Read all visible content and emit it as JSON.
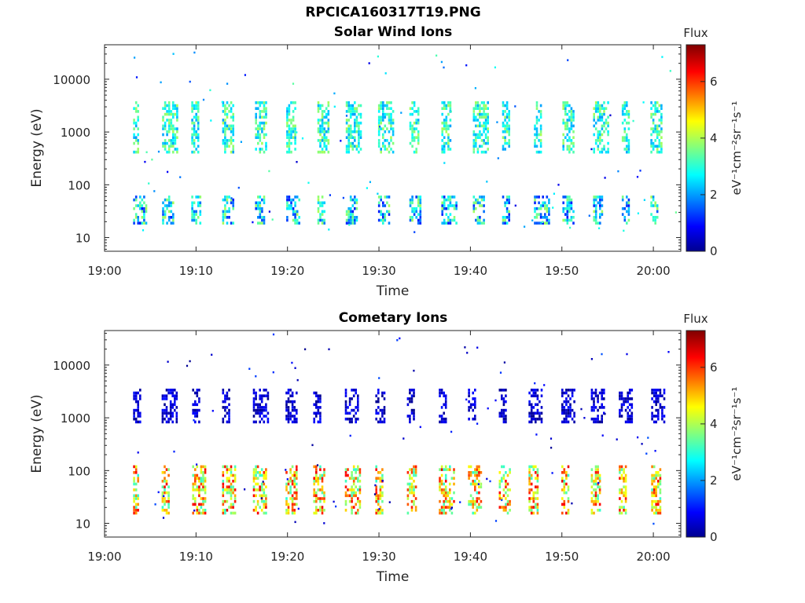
{
  "figure_title": "RPCICA160317T19.PNG",
  "chart_data": [
    {
      "type": "heatmap",
      "title": "Solar Wind Ions",
      "xlabel": "Time",
      "ylabel": "Energy (eV)",
      "x_ticks": [
        "19:00",
        "19:10",
        "19:20",
        "19:30",
        "19:40",
        "19:50",
        "20:00"
      ],
      "y_ticks": [
        "10",
        "100",
        "1000",
        "10000"
      ],
      "y_scale": "log",
      "xlim": [
        "19:00",
        "20:03"
      ],
      "ylim": [
        5.5,
        45000
      ],
      "colorbar": {
        "label": "Flux",
        "unit_label": "eV⁻¹cm⁻²sr⁻¹s⁻¹",
        "ticks": [
          "0",
          "2",
          "4",
          "6"
        ],
        "range": [
          0,
          7.3
        ]
      },
      "band_summary": [
        {
          "energy_eV": [
            18,
            60
          ],
          "flux_range": [
            1,
            4
          ]
        },
        {
          "energy_eV": [
            400,
            3500
          ],
          "flux_range": [
            2,
            4
          ]
        }
      ]
    },
    {
      "type": "heatmap",
      "title": "Cometary Ions",
      "xlabel": "Time",
      "ylabel": "Energy (eV)",
      "x_ticks": [
        "19:00",
        "19:10",
        "19:20",
        "19:30",
        "19:40",
        "19:50",
        "20:00"
      ],
      "y_ticks": [
        "10",
        "100",
        "1000",
        "10000"
      ],
      "y_scale": "log",
      "xlim": [
        "19:00",
        "20:03"
      ],
      "ylim": [
        5.5,
        45000
      ],
      "colorbar": {
        "label": "Flux",
        "unit_label": "eV⁻¹cm⁻²sr⁻¹s⁻¹",
        "ticks": [
          "0",
          "2",
          "4",
          "6"
        ],
        "range": [
          0,
          7.3
        ]
      },
      "band_summary": [
        {
          "energy_eV": [
            15,
            120
          ],
          "flux_range": [
            3,
            6.5
          ]
        },
        {
          "energy_eV": [
            800,
            3500
          ],
          "flux_range": [
            0,
            1
          ]
        }
      ]
    }
  ]
}
